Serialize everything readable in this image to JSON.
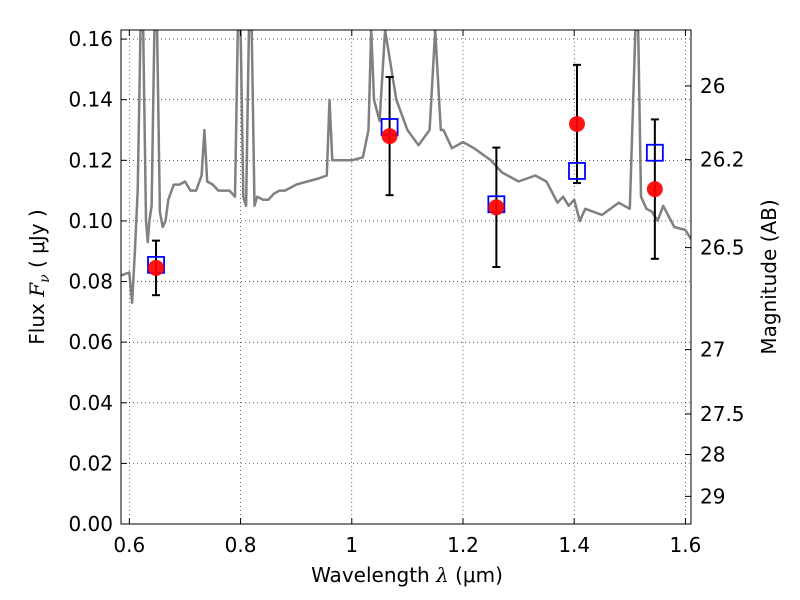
{
  "chart_data": {
    "type": "scatter",
    "title": "",
    "xlabel_parts": {
      "prefix": "Wavelength  ",
      "symbol": "λ",
      "unit": " (μm)"
    },
    "ylabel_parts": {
      "prefix": "Flux  ",
      "symbol": "F",
      "sub": "ν",
      "unit": "  ( μJy )"
    },
    "y2label": "Magnitude (AB)",
    "xlim": [
      0.585,
      1.61
    ],
    "ylim": [
      0.0,
      0.163
    ],
    "x_ticks": [
      0.6,
      0.8,
      1.0,
      1.2,
      1.4,
      1.6
    ],
    "x_tick_labels": [
      "0.6",
      "0.8",
      "1",
      "1.2",
      "1.4",
      "1.6"
    ],
    "y_ticks": [
      0.0,
      0.02,
      0.04,
      0.06,
      0.08,
      0.1,
      0.12,
      0.14,
      0.16
    ],
    "y_tick_labels": [
      "0.00",
      "0.02",
      "0.04",
      "0.06",
      "0.08",
      "0.10",
      "0.12",
      "0.14",
      "0.16"
    ],
    "y2_ticks": [
      26,
      26.2,
      26.5,
      27,
      27.5,
      28,
      29
    ],
    "y2_tick_labels": [
      "26",
      "26.2",
      "26.5",
      "27",
      "27.5",
      "28",
      "29"
    ],
    "grid": true,
    "series": [
      {
        "marker": "circle",
        "color": "#ff0000",
        "points": [
          {
            "x": 0.648,
            "y": 0.0845,
            "err": 0.009
          },
          {
            "x": 1.068,
            "y": 0.128,
            "err": 0.0195
          },
          {
            "x": 1.26,
            "y": 0.1045,
            "err": 0.0197
          },
          {
            "x": 1.405,
            "y": 0.132,
            "err": 0.0195
          },
          {
            "x": 1.545,
            "y": 0.1105,
            "err": 0.023
          }
        ]
      },
      {
        "marker": "square",
        "color": "#0000ff",
        "points": [
          {
            "x": 0.648,
            "y": 0.0855
          },
          {
            "x": 1.068,
            "y": 0.131
          },
          {
            "x": 1.26,
            "y": 0.1055
          },
          {
            "x": 1.405,
            "y": 0.1165
          },
          {
            "x": 1.545,
            "y": 0.1225
          }
        ]
      },
      {
        "type": "line",
        "color": "#808080",
        "x": [
          0.585,
          0.6,
          0.605,
          0.61,
          0.615,
          0.62,
          0.625,
          0.63,
          0.633,
          0.636,
          0.64,
          0.645,
          0.65,
          0.655,
          0.66,
          0.665,
          0.67,
          0.68,
          0.69,
          0.7,
          0.71,
          0.72,
          0.73,
          0.735,
          0.74,
          0.75,
          0.76,
          0.77,
          0.78,
          0.79,
          0.795,
          0.8,
          0.805,
          0.81,
          0.815,
          0.82,
          0.825,
          0.83,
          0.84,
          0.85,
          0.86,
          0.87,
          0.88,
          0.9,
          0.92,
          0.94,
          0.955,
          0.96,
          0.965,
          1.0,
          1.02,
          1.03,
          1.035,
          1.04,
          1.05,
          1.06,
          1.08,
          1.1,
          1.12,
          1.14,
          1.15,
          1.16,
          1.165,
          1.17,
          1.18,
          1.19,
          1.2,
          1.22,
          1.25,
          1.27,
          1.3,
          1.33,
          1.35,
          1.37,
          1.38,
          1.39,
          1.4,
          1.41,
          1.42,
          1.45,
          1.48,
          1.5,
          1.51,
          1.515,
          1.52,
          1.53,
          1.54,
          1.55,
          1.56,
          1.58,
          1.6,
          1.61
        ],
        "y": [
          0.082,
          0.083,
          0.073,
          0.09,
          0.11,
          0.163,
          0.163,
          0.1,
          0.093,
          0.1,
          0.105,
          0.163,
          0.163,
          0.103,
          0.098,
          0.1,
          0.107,
          0.112,
          0.112,
          0.113,
          0.11,
          0.11,
          0.115,
          0.13,
          0.113,
          0.112,
          0.11,
          0.11,
          0.11,
          0.108,
          0.163,
          0.163,
          0.108,
          0.105,
          0.163,
          0.163,
          0.105,
          0.108,
          0.107,
          0.107,
          0.109,
          0.11,
          0.11,
          0.112,
          0.113,
          0.114,
          0.115,
          0.14,
          0.12,
          0.12,
          0.121,
          0.13,
          0.163,
          0.14,
          0.133,
          0.163,
          0.14,
          0.13,
          0.125,
          0.13,
          0.163,
          0.13,
          0.13,
          0.128,
          0.124,
          0.125,
          0.126,
          0.124,
          0.12,
          0.116,
          0.113,
          0.115,
          0.113,
          0.106,
          0.108,
          0.105,
          0.107,
          0.1,
          0.104,
          0.102,
          0.106,
          0.104,
          0.163,
          0.163,
          0.108,
          0.104,
          0.103,
          0.1,
          0.105,
          0.098,
          0.097,
          0.094
        ]
      }
    ]
  }
}
